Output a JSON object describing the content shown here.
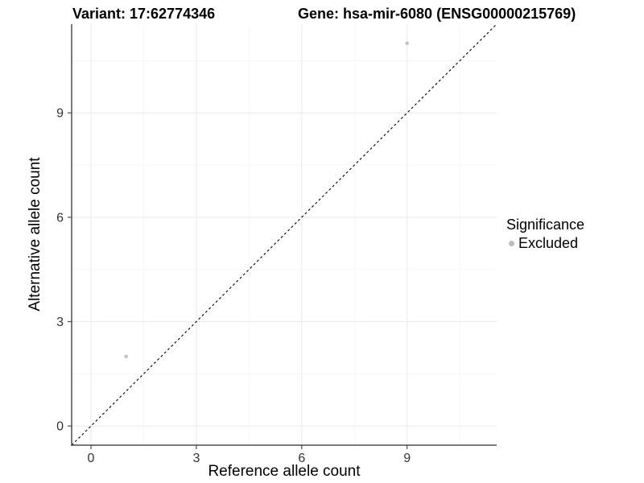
{
  "chart_data": {
    "type": "scatter",
    "title_left": "Variant: 17:62774346",
    "title_right": "Gene: hsa-mir-6080 (ENSG00000215769)",
    "xlabel": "Reference allele count",
    "ylabel": "Alternative allele count",
    "xlim": [
      -0.55,
      11.55
    ],
    "ylim": [
      -0.55,
      11.55
    ],
    "xticks": [
      0,
      3,
      6,
      9
    ],
    "yticks": [
      0,
      3,
      6,
      9
    ],
    "x_minor_breaks": [
      1.5,
      4.5,
      7.5,
      10.5
    ],
    "y_minor_breaks": [
      1.5,
      4.5,
      7.5,
      10.5
    ],
    "grid": "on",
    "identity_line": {
      "style": "dashed",
      "x1": -0.55,
      "y1": -0.55,
      "x2": 11.55,
      "y2": 11.55,
      "color": "#000000"
    },
    "series": [
      {
        "name": "Excluded",
        "color": "#c3c3c3",
        "points": [
          [
            1,
            2
          ],
          [
            9,
            11
          ]
        ]
      }
    ],
    "legend": {
      "title": "Significance",
      "position": "right",
      "entries": [
        {
          "label": "Excluded",
          "color": "#bdbdbd"
        }
      ]
    },
    "colors": {
      "background": "#ffffff",
      "axis_line": "#4d4d4d",
      "tick_label": "#333333",
      "grid_major": "#ececec",
      "grid_minor": "#f5f5f5",
      "text": "#000000"
    }
  }
}
